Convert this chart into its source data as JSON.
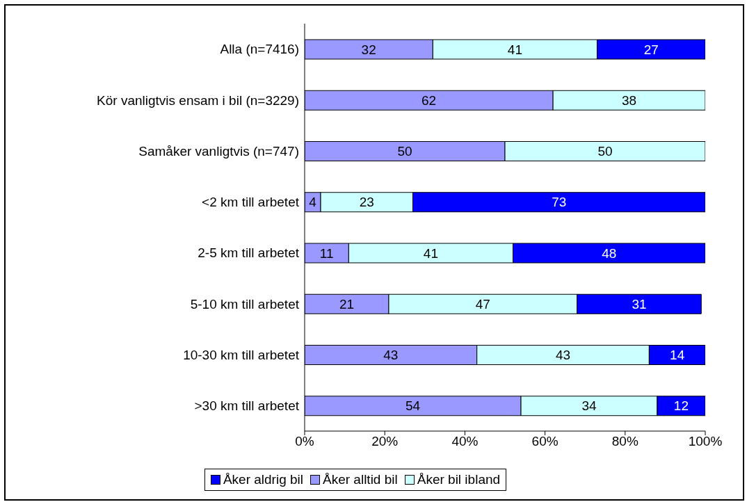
{
  "chart_data": {
    "type": "bar",
    "orientation": "horizontal",
    "stacked": true,
    "categories": [
      "Alla (n=7416)",
      "Kör vanligtvis ensam i bil (n=3229)",
      "Samåker vanligtvis (n=747)",
      "<2 km till arbetet",
      "2-5 km till arbetet",
      "5-10 km till arbetet",
      "10-30 km till arbetet",
      ">30 km till arbetet"
    ],
    "series": [
      {
        "name": "Åker alltid bil",
        "color": "#9999ff",
        "values": [
          32,
          62,
          50,
          4,
          11,
          21,
          43,
          54
        ]
      },
      {
        "name": "Åker bil ibland",
        "color": "#ccffff",
        "values": [
          41,
          38,
          50,
          23,
          41,
          47,
          43,
          34
        ]
      },
      {
        "name": "Åker aldrig bil",
        "color": "#0000ff",
        "values": [
          27,
          null,
          null,
          73,
          48,
          31,
          14,
          12
        ]
      }
    ],
    "xlim": [
      0,
      100
    ],
    "xticks": [
      {
        "value": 0,
        "label": "0%"
      },
      {
        "value": 20,
        "label": "20%"
      },
      {
        "value": 40,
        "label": "40%"
      },
      {
        "value": 60,
        "label": "60%"
      },
      {
        "value": 80,
        "label": "80%"
      },
      {
        "value": 100,
        "label": "100%"
      }
    ],
    "data_labels": true,
    "grid": false,
    "legend": "bottom"
  }
}
